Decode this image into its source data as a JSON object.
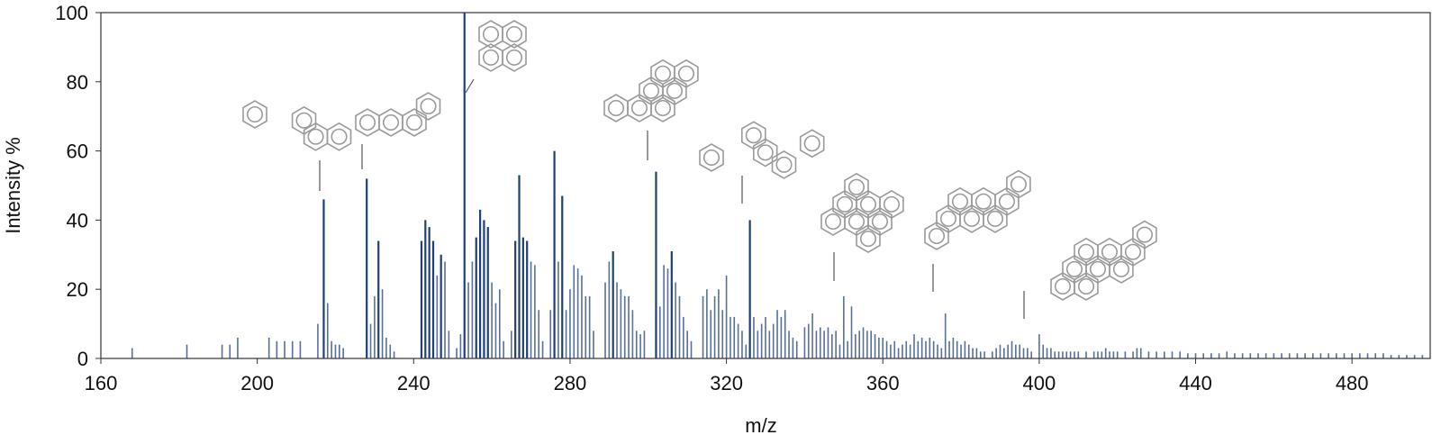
{
  "chart_data": {
    "type": "bar",
    "title": "",
    "xlabel": "m/z",
    "ylabel": "Intensity %",
    "xlim": [
      160,
      500
    ],
    "ylim": [
      0,
      100
    ],
    "x_ticks": [
      160,
      200,
      240,
      280,
      320,
      360,
      400,
      440,
      480
    ],
    "y_ticks": [
      0,
      20,
      40,
      60,
      80,
      100
    ],
    "grid": false,
    "legend": "none",
    "bar_color": "#1f3f7a",
    "peaks": [
      [
        168,
        3
      ],
      [
        182,
        4
      ],
      [
        191,
        4
      ],
      [
        193,
        4
      ],
      [
        195,
        6
      ],
      [
        203,
        6
      ],
      [
        205,
        5
      ],
      [
        207,
        5
      ],
      [
        209,
        5
      ],
      [
        211,
        5
      ],
      [
        215.5,
        10
      ],
      [
        217,
        46
      ],
      [
        218,
        16
      ],
      [
        219,
        5
      ],
      [
        220,
        4
      ],
      [
        221,
        4
      ],
      [
        222,
        3
      ],
      [
        228,
        52
      ],
      [
        229,
        10
      ],
      [
        230,
        18
      ],
      [
        231,
        34
      ],
      [
        232,
        20
      ],
      [
        233,
        6
      ],
      [
        234,
        4
      ],
      [
        235,
        2
      ],
      [
        242,
        34
      ],
      [
        243,
        40
      ],
      [
        244,
        38
      ],
      [
        245,
        34
      ],
      [
        246,
        24
      ],
      [
        247,
        30
      ],
      [
        248,
        28
      ],
      [
        249,
        8
      ],
      [
        251,
        3
      ],
      [
        252,
        7
      ],
      [
        253,
        100
      ],
      [
        254,
        22
      ],
      [
        255,
        28
      ],
      [
        256,
        35
      ],
      [
        257,
        43
      ],
      [
        258,
        40
      ],
      [
        259,
        38
      ],
      [
        260,
        22
      ],
      [
        261,
        16
      ],
      [
        262,
        20
      ],
      [
        263,
        5
      ],
      [
        265,
        8
      ],
      [
        266,
        34
      ],
      [
        267,
        53
      ],
      [
        268,
        35
      ],
      [
        269,
        34
      ],
      [
        270,
        28
      ],
      [
        271,
        27
      ],
      [
        272,
        14
      ],
      [
        273,
        5
      ],
      [
        275,
        14
      ],
      [
        276,
        60
      ],
      [
        277,
        28
      ],
      [
        278,
        47
      ],
      [
        279,
        14
      ],
      [
        280,
        20
      ],
      [
        281,
        27
      ],
      [
        282,
        26
      ],
      [
        283,
        24
      ],
      [
        284,
        18
      ],
      [
        285,
        18
      ],
      [
        286,
        8
      ],
      [
        289,
        22
      ],
      [
        290,
        28
      ],
      [
        291,
        31
      ],
      [
        292,
        22
      ],
      [
        293,
        20
      ],
      [
        294,
        18
      ],
      [
        295,
        18
      ],
      [
        296,
        14
      ],
      [
        297,
        8
      ],
      [
        298,
        7
      ],
      [
        299,
        8
      ],
      [
        302,
        54
      ],
      [
        303,
        15
      ],
      [
        304,
        27
      ],
      [
        305,
        26
      ],
      [
        306,
        31
      ],
      [
        307,
        22
      ],
      [
        308,
        18
      ],
      [
        309,
        12
      ],
      [
        310,
        8
      ],
      [
        311,
        5
      ],
      [
        314,
        18
      ],
      [
        315,
        20
      ],
      [
        316,
        14
      ],
      [
        317,
        18
      ],
      [
        318,
        20
      ],
      [
        319,
        14
      ],
      [
        320,
        24
      ],
      [
        321,
        12
      ],
      [
        322,
        12
      ],
      [
        323,
        10
      ],
      [
        324,
        8
      ],
      [
        325,
        4
      ],
      [
        326,
        40
      ],
      [
        327,
        12
      ],
      [
        328,
        8
      ],
      [
        329,
        10
      ],
      [
        330,
        12
      ],
      [
        331,
        8
      ],
      [
        332,
        10
      ],
      [
        333,
        14
      ],
      [
        334,
        12
      ],
      [
        335,
        14
      ],
      [
        336,
        8
      ],
      [
        337,
        6
      ],
      [
        338,
        5
      ],
      [
        340,
        9
      ],
      [
        341,
        10
      ],
      [
        342,
        13
      ],
      [
        343,
        8
      ],
      [
        344,
        9
      ],
      [
        345,
        8
      ],
      [
        346,
        9
      ],
      [
        347,
        7
      ],
      [
        348,
        8
      ],
      [
        349,
        4
      ],
      [
        350,
        18
      ],
      [
        351,
        5
      ],
      [
        352,
        15
      ],
      [
        353,
        7
      ],
      [
        354,
        8
      ],
      [
        355,
        9
      ],
      [
        356,
        8
      ],
      [
        357,
        8
      ],
      [
        358,
        7
      ],
      [
        359,
        6
      ],
      [
        360,
        6
      ],
      [
        361,
        5
      ],
      [
        362,
        4
      ],
      [
        363,
        5
      ],
      [
        364,
        3
      ],
      [
        365,
        4
      ],
      [
        366,
        5
      ],
      [
        367,
        4
      ],
      [
        368,
        7
      ],
      [
        369,
        5
      ],
      [
        370,
        6
      ],
      [
        371,
        5
      ],
      [
        372,
        6
      ],
      [
        373,
        5
      ],
      [
        374,
        4
      ],
      [
        375,
        3
      ],
      [
        376,
        13
      ],
      [
        377,
        5
      ],
      [
        378,
        6
      ],
      [
        379,
        5
      ],
      [
        380,
        4
      ],
      [
        381,
        5
      ],
      [
        382,
        4
      ],
      [
        383,
        3
      ],
      [
        384,
        3
      ],
      [
        385,
        2
      ],
      [
        386,
        2
      ],
      [
        388,
        2
      ],
      [
        389,
        3
      ],
      [
        390,
        4
      ],
      [
        391,
        3
      ],
      [
        392,
        4
      ],
      [
        393,
        5
      ],
      [
        394,
        4
      ],
      [
        395,
        4
      ],
      [
        396,
        3
      ],
      [
        397,
        3
      ],
      [
        398,
        2
      ],
      [
        400,
        7
      ],
      [
        401,
        4
      ],
      [
        402,
        3
      ],
      [
        403,
        3
      ],
      [
        404,
        2
      ],
      [
        405,
        2
      ],
      [
        406,
        2
      ],
      [
        407,
        2
      ],
      [
        408,
        2
      ],
      [
        409,
        2
      ],
      [
        410,
        2
      ],
      [
        412,
        2
      ],
      [
        414,
        2
      ],
      [
        415,
        2
      ],
      [
        416,
        2
      ],
      [
        417,
        3
      ],
      [
        418,
        2
      ],
      [
        419,
        2
      ],
      [
        420,
        2
      ],
      [
        422,
        2
      ],
      [
        424,
        2
      ],
      [
        425,
        3
      ],
      [
        426,
        3
      ],
      [
        428,
        2
      ],
      [
        430,
        2
      ],
      [
        432,
        2
      ],
      [
        434,
        2
      ],
      [
        436,
        2
      ],
      [
        438,
        1.5
      ],
      [
        440,
        1.5
      ],
      [
        442,
        1.5
      ],
      [
        444,
        1.5
      ],
      [
        446,
        1.5
      ],
      [
        448,
        2
      ],
      [
        450,
        1.5
      ],
      [
        452,
        1.5
      ],
      [
        454,
        1.5
      ],
      [
        456,
        1.5
      ],
      [
        458,
        1.5
      ],
      [
        460,
        1.5
      ],
      [
        462,
        1.5
      ],
      [
        464,
        1.5
      ],
      [
        466,
        1.5
      ],
      [
        468,
        1.5
      ],
      [
        470,
        1.5
      ],
      [
        472,
        1.5
      ],
      [
        474,
        1.5
      ],
      [
        476,
        1.5
      ],
      [
        478,
        1.5
      ],
      [
        480,
        1.5
      ],
      [
        482,
        1.5
      ],
      [
        484,
        1.5
      ],
      [
        486,
        1.5
      ],
      [
        488,
        1.5
      ],
      [
        490,
        1
      ],
      [
        492,
        1
      ],
      [
        494,
        1
      ],
      [
        496,
        1
      ],
      [
        498,
        1
      ]
    ],
    "annotated_peaks": [
      {
        "mz": 217,
        "intensity": 46,
        "structure": "aza-PAH (N-H) with four rings"
      },
      {
        "mz": 228,
        "intensity": 52,
        "structure": "four-ring catacondensed PAH"
      },
      {
        "mz": 253,
        "intensity": 100,
        "structure": "five-ring PAH"
      },
      {
        "mz": 302,
        "intensity": 54,
        "structure": "six-ring PAH"
      },
      {
        "mz": 326,
        "intensity": 40,
        "structure": "fluoranthene-type PAH"
      },
      {
        "mz": 350,
        "intensity": 18,
        "structure": "seven-ring pericondensed PAH"
      },
      {
        "mz": 376,
        "intensity": 13,
        "structure": "eight-ring PAH"
      },
      {
        "mz": 400,
        "intensity": 7,
        "structure": "nine-ring PAH"
      }
    ]
  }
}
